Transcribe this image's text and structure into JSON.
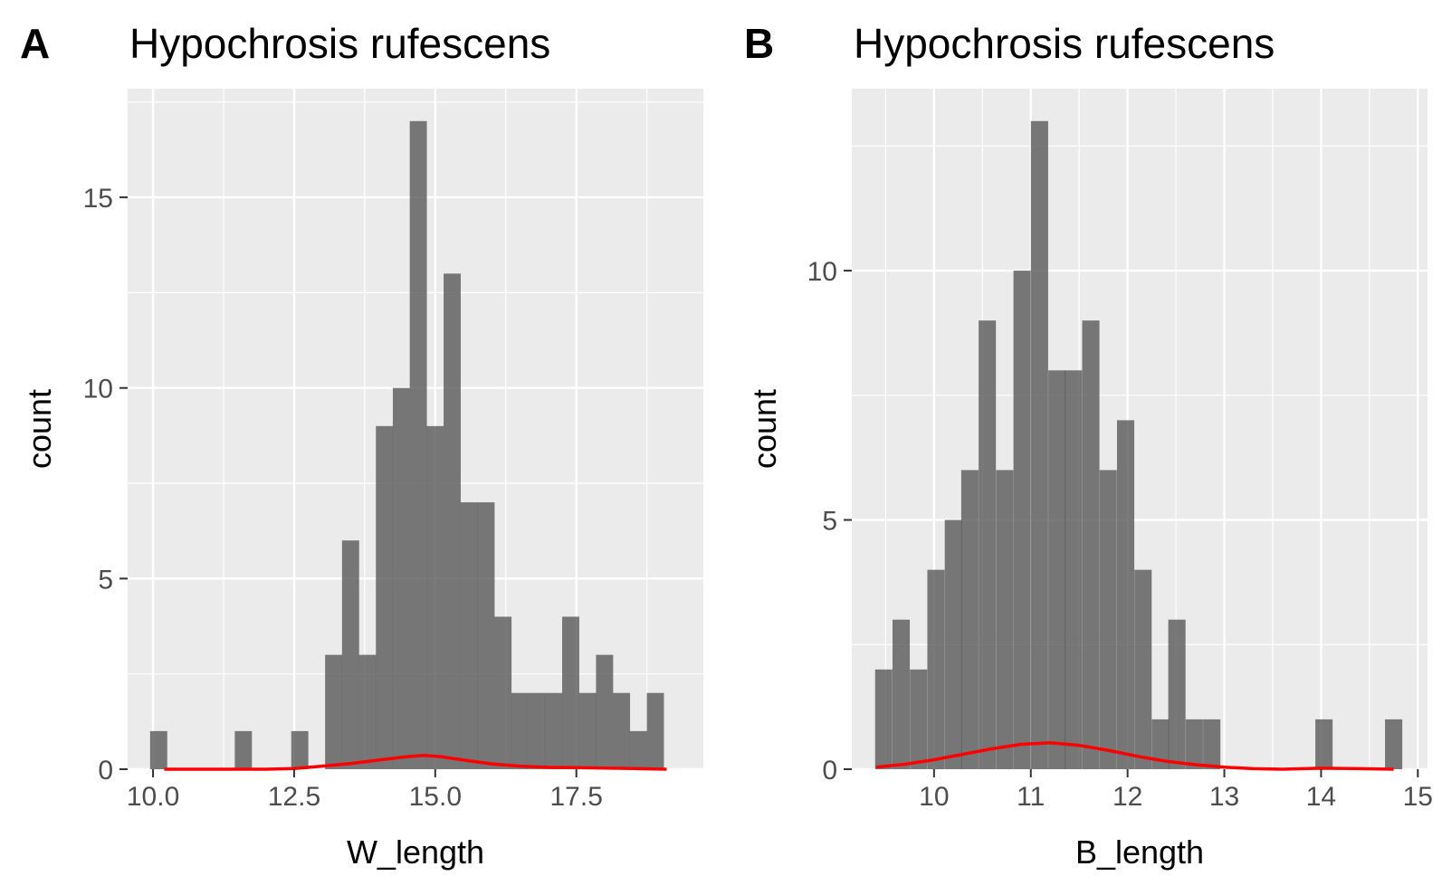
{
  "chart_data": [
    {
      "type": "histogram",
      "panel_tag": "A",
      "title": "Hypochrosis rufescens",
      "xlabel": "W_length",
      "ylabel": "count",
      "xlim": [
        9.55,
        19.75
      ],
      "ylim": [
        0,
        17.85
      ],
      "xticks": [
        10,
        12.5,
        15,
        17.5
      ],
      "xtick_labels": [
        "10.0",
        "12.5",
        "15.0",
        "17.5"
      ],
      "yticks": [
        0,
        5,
        10,
        15
      ],
      "ytick_labels": [
        "0",
        "5",
        "10",
        "15"
      ],
      "grid": true,
      "bin_width": 0.3033,
      "bins": [
        {
          "center": 10.1,
          "count": 1
        },
        {
          "center": 11.6,
          "count": 1
        },
        {
          "center": 12.6,
          "count": 1
        },
        {
          "center": 13.2,
          "count": 3
        },
        {
          "center": 13.5,
          "count": 6
        },
        {
          "center": 13.8,
          "count": 3
        },
        {
          "center": 14.1,
          "count": 9
        },
        {
          "center": 14.4,
          "count": 10
        },
        {
          "center": 14.7,
          "count": 17
        },
        {
          "center": 15.0,
          "count": 9
        },
        {
          "center": 15.3,
          "count": 13
        },
        {
          "center": 15.6,
          "count": 7
        },
        {
          "center": 15.9,
          "count": 7
        },
        {
          "center": 16.2,
          "count": 4
        },
        {
          "center": 16.5,
          "count": 2
        },
        {
          "center": 16.8,
          "count": 2
        },
        {
          "center": 17.1,
          "count": 2
        },
        {
          "center": 17.4,
          "count": 4
        },
        {
          "center": 17.7,
          "count": 2
        },
        {
          "center": 18.0,
          "count": 3
        },
        {
          "center": 18.3,
          "count": 2
        },
        {
          "center": 18.6,
          "count": 1
        },
        {
          "center": 18.9,
          "count": 2
        }
      ],
      "density_curve": [
        [
          10.2,
          0
        ],
        [
          11.0,
          0
        ],
        [
          12.0,
          0
        ],
        [
          12.5,
          0.02
        ],
        [
          13.0,
          0.08
        ],
        [
          13.5,
          0.15
        ],
        [
          14.0,
          0.24
        ],
        [
          14.5,
          0.33
        ],
        [
          14.8,
          0.36
        ],
        [
          15.1,
          0.33
        ],
        [
          15.5,
          0.24
        ],
        [
          16.0,
          0.14
        ],
        [
          16.5,
          0.08
        ],
        [
          17.0,
          0.05
        ],
        [
          17.5,
          0.04
        ],
        [
          18.0,
          0.03
        ],
        [
          18.5,
          0.02
        ],
        [
          19.1,
          0
        ]
      ]
    },
    {
      "type": "histogram",
      "panel_tag": "B",
      "title": "Hypochrosis rufescens",
      "xlabel": "B_length",
      "ylabel": "count",
      "xlim": [
        9.15,
        15.1
      ],
      "ylim": [
        0,
        13.65
      ],
      "xticks": [
        10,
        11,
        12,
        13,
        14,
        15
      ],
      "xtick_labels": [
        "10",
        "11",
        "12",
        "13",
        "14",
        "15"
      ],
      "yticks": [
        0,
        5,
        10
      ],
      "ytick_labels": [
        "0",
        "5",
        "10"
      ],
      "grid": true,
      "bin_width": 0.1784,
      "bins": [
        {
          "center": 9.48,
          "count": 2
        },
        {
          "center": 9.66,
          "count": 3
        },
        {
          "center": 9.84,
          "count": 2
        },
        {
          "center": 10.02,
          "count": 4
        },
        {
          "center": 10.2,
          "count": 5
        },
        {
          "center": 10.37,
          "count": 6
        },
        {
          "center": 10.55,
          "count": 9
        },
        {
          "center": 10.73,
          "count": 6
        },
        {
          "center": 10.91,
          "count": 10
        },
        {
          "center": 11.09,
          "count": 13
        },
        {
          "center": 11.27,
          "count": 8
        },
        {
          "center": 11.44,
          "count": 8
        },
        {
          "center": 11.62,
          "count": 9
        },
        {
          "center": 11.8,
          "count": 6
        },
        {
          "center": 11.98,
          "count": 7
        },
        {
          "center": 12.16,
          "count": 4
        },
        {
          "center": 12.34,
          "count": 1
        },
        {
          "center": 12.51,
          "count": 3
        },
        {
          "center": 12.69,
          "count": 1
        },
        {
          "center": 12.87,
          "count": 1
        },
        {
          "center": 14.03,
          "count": 1
        },
        {
          "center": 14.75,
          "count": 1
        }
      ],
      "density_curve": [
        [
          9.4,
          0.04
        ],
        [
          9.7,
          0.1
        ],
        [
          10.0,
          0.19
        ],
        [
          10.3,
          0.3
        ],
        [
          10.6,
          0.41
        ],
        [
          10.9,
          0.5
        ],
        [
          11.2,
          0.53
        ],
        [
          11.5,
          0.48
        ],
        [
          11.8,
          0.38
        ],
        [
          12.1,
          0.26
        ],
        [
          12.4,
          0.16
        ],
        [
          12.7,
          0.09
        ],
        [
          13.0,
          0.04
        ],
        [
          13.3,
          0.01
        ],
        [
          13.6,
          0
        ],
        [
          14.0,
          0.02
        ],
        [
          14.4,
          0.01
        ],
        [
          14.75,
          0
        ]
      ]
    }
  ]
}
